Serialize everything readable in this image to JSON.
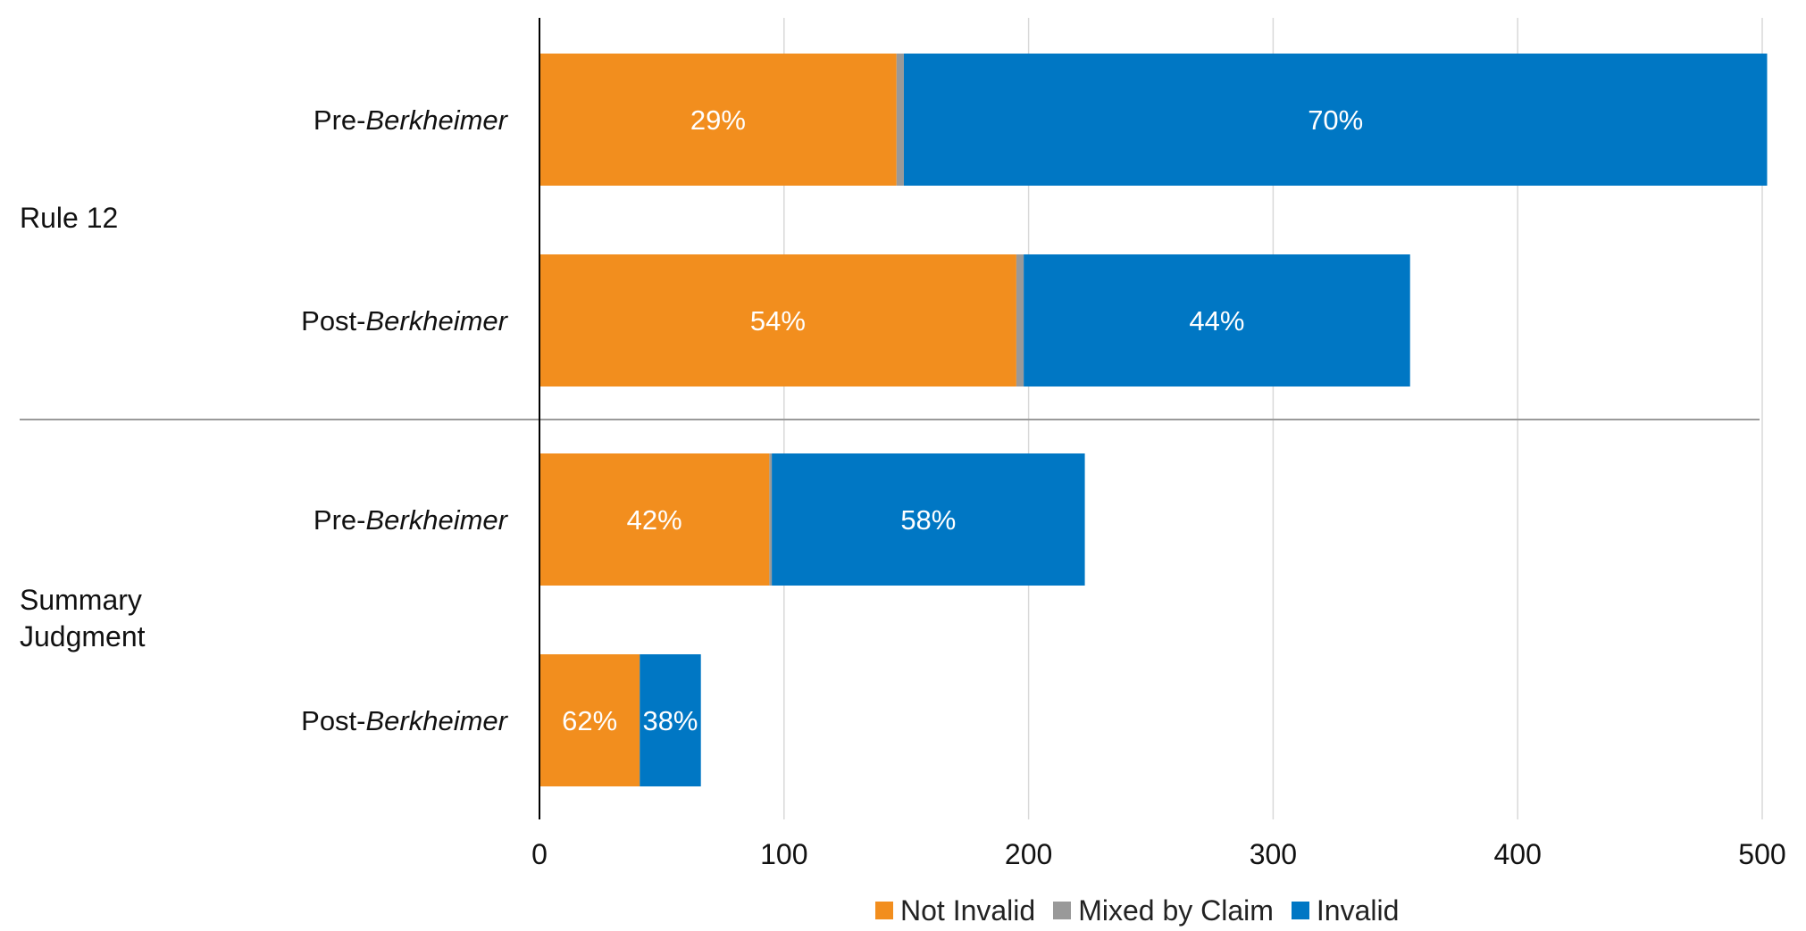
{
  "chart_data": {
    "type": "bar",
    "orientation": "horizontal",
    "stacked": true,
    "groups": [
      {
        "label": "Rule 12",
        "rows": [
          0,
          1
        ]
      },
      {
        "label": "Summary Judgment",
        "rows": [
          2,
          3
        ]
      }
    ],
    "rows": [
      {
        "prefix": "Pre-",
        "emph": "Berkheimer"
      },
      {
        "prefix": "Post-",
        "emph": "Berkheimer"
      },
      {
        "prefix": "Pre-",
        "emph": "Berkheimer"
      },
      {
        "prefix": "Post-",
        "emph": "Berkheimer"
      }
    ],
    "series": [
      {
        "name": "Not Invalid",
        "color": "#F28E1E",
        "values": [
          146,
          195,
          94,
          41
        ],
        "labels": [
          "29%",
          "54%",
          "42%",
          "62%"
        ]
      },
      {
        "name": "Mixed by Claim",
        "color": "#999999",
        "values": [
          3,
          3,
          1,
          0
        ],
        "labels": [
          "",
          "",
          "",
          ""
        ]
      },
      {
        "name": "Invalid",
        "color": "#0077C4",
        "values": [
          353,
          158,
          128,
          25
        ],
        "labels": [
          "70%",
          "44%",
          "58%",
          "38%"
        ]
      }
    ],
    "xlim": [
      0,
      500
    ],
    "xticks": [
      0,
      100,
      200,
      300,
      400,
      500
    ],
    "grid": true,
    "legend_position": "bottom"
  }
}
